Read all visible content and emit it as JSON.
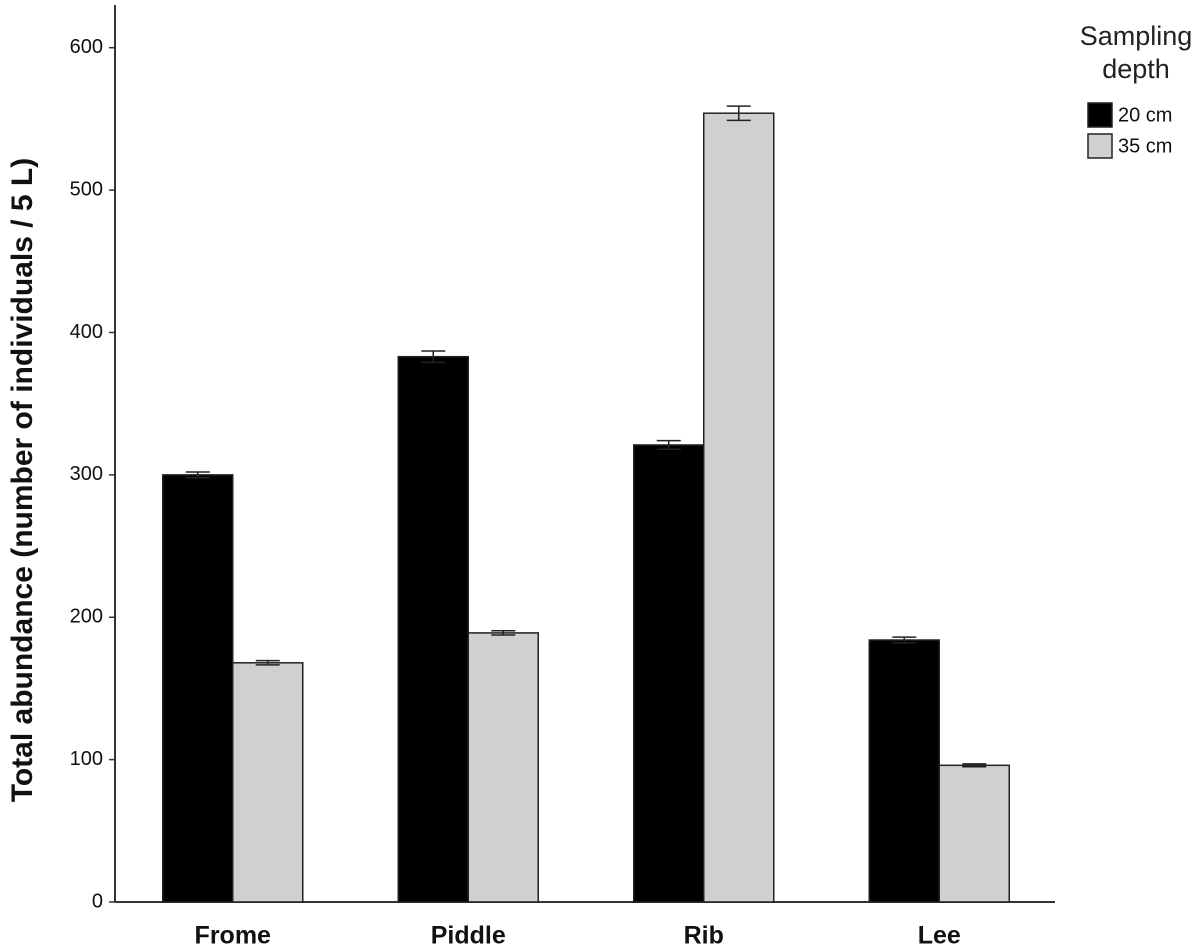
{
  "chart_data": {
    "type": "bar",
    "y_label": "Total abundance (number of individuals / 5 L)",
    "legend_title": "Sampling depth",
    "categories": [
      "Frome",
      "Piddle",
      "Rib",
      "Lee"
    ],
    "series": [
      {
        "name": "20 cm",
        "color": "#000000",
        "values": [
          300,
          383,
          321,
          184
        ],
        "errors": [
          2,
          4,
          3,
          2
        ]
      },
      {
        "name": "35 cm",
        "color": "#d0d0d0",
        "values": [
          168,
          189,
          554,
          96
        ],
        "errors": [
          1.5,
          1.5,
          5,
          1
        ]
      }
    ],
    "ylim": [
      0,
      630
    ],
    "yticks": [
      0,
      100,
      200,
      300,
      400,
      500,
      600
    ],
    "grid": false,
    "legend": "top-right"
  }
}
